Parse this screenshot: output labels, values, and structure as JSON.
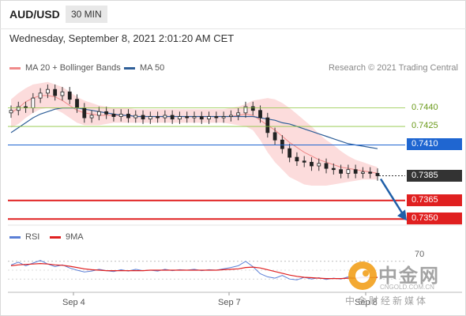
{
  "header": {
    "pair": "AUD/USD",
    "timeframe": "30 MIN",
    "datetime": "Wednesday, September 8, 2021 2:01:20 AM CET"
  },
  "legend": {
    "ma20_label": "MA 20 + Bollinger Bands",
    "ma50_label": "MA 50",
    "credit": "Research © 2021 Trading Central"
  },
  "colors": {
    "ma20": "#f08a8a",
    "bollinger_fill": "#fbd0d0",
    "ma50": "#2f5f98",
    "resistance": "#8dc63f",
    "pivot": "#1f66d1",
    "current": "#333333",
    "support": "#e02020",
    "arrow": "#1f5fa8",
    "rsi": "#5b7fd6",
    "rsi_ma": "#e02020"
  },
  "levels": [
    {
      "value": "0.7440",
      "kind": "resistance"
    },
    {
      "value": "0.7425",
      "kind": "resistance"
    },
    {
      "value": "0.7410",
      "kind": "pivot"
    },
    {
      "value": "0.7385",
      "kind": "current"
    },
    {
      "value": "0.7365",
      "kind": "support"
    },
    {
      "value": "0.7350",
      "kind": "support"
    }
  ],
  "rsi": {
    "rsi_label": "RSI",
    "ma_label": "9MA",
    "level_label": "70"
  },
  "x_ticks": [
    "Sep 4",
    "Sep 7",
    "Sep 8"
  ],
  "watermark": {
    "cn": "中金网",
    "en": "CNGOLD.COM.CN",
    "sub": "中金财经新媒体"
  },
  "chart_data": {
    "type": "candlestick",
    "timeframe": "30 MIN",
    "close": [
      0.7438,
      0.7441,
      0.744,
      0.7448,
      0.7452,
      0.7455,
      0.745,
      0.7453,
      0.7447,
      0.744,
      0.7432,
      0.7434,
      0.7437,
      0.7435,
      0.7433,
      0.7435,
      0.7432,
      0.7434,
      0.7431,
      0.7433,
      0.7432,
      0.7434,
      0.7431,
      0.7433,
      0.7432,
      0.7433,
      0.7431,
      0.7433,
      0.7432,
      0.7433,
      0.7434,
      0.7436,
      0.7441,
      0.7438,
      0.7432,
      0.742,
      0.7414,
      0.7407,
      0.74,
      0.7397,
      0.7396,
      0.7393,
      0.7395,
      0.7391,
      0.739,
      0.7387,
      0.739,
      0.7387,
      0.7388,
      0.7387,
      0.7385
    ],
    "ma20": [
      0.7436,
      0.744,
      0.7445,
      0.7448,
      0.745,
      0.745,
      0.7449,
      0.7446,
      0.7442,
      0.7438,
      0.7436,
      0.7435,
      0.7434,
      0.7434,
      0.7434,
      0.7434,
      0.7434,
      0.7433,
      0.7433,
      0.7433,
      0.7433,
      0.7433,
      0.7433,
      0.7433,
      0.7433,
      0.7433,
      0.7433,
      0.7433,
      0.7433,
      0.7433,
      0.7433,
      0.7434,
      0.7435,
      0.7434,
      0.743,
      0.7426,
      0.7422,
      0.7417,
      0.7412,
      0.7408,
      0.7404,
      0.7401,
      0.7398,
      0.7396,
      0.7394,
      0.7392,
      0.7391,
      0.739,
      0.7389,
      0.7388,
      0.7387
    ],
    "ma50": [
      0.742,
      0.7424,
      0.7428,
      0.7432,
      0.7435,
      0.7437,
      0.7439,
      0.744,
      0.744,
      0.744,
      0.7439,
      0.7438,
      0.7437,
      0.7436,
      0.7435,
      0.7434,
      0.7434,
      0.7433,
      0.7433,
      0.7433,
      0.7433,
      0.7433,
      0.7433,
      0.7433,
      0.7433,
      0.7433,
      0.7433,
      0.7433,
      0.7433,
      0.7433,
      0.7433,
      0.7433,
      0.7433,
      0.7433,
      0.7432,
      0.7431,
      0.743,
      0.7428,
      0.7427,
      0.7425,
      0.7423,
      0.7421,
      0.7419,
      0.7417,
      0.7415,
      0.7413,
      0.7411,
      0.741,
      0.7409,
      0.7408,
      0.7407
    ],
    "bb_upper": [
      0.7447,
      0.7452,
      0.7456,
      0.7459,
      0.746,
      0.7461,
      0.7459,
      0.7457,
      0.7453,
      0.7449,
      0.7446,
      0.7444,
      0.7442,
      0.7441,
      0.744,
      0.744,
      0.744,
      0.7439,
      0.7439,
      0.7439,
      0.7439,
      0.7439,
      0.7439,
      0.7439,
      0.7439,
      0.7439,
      0.7439,
      0.7439,
      0.7439,
      0.7439,
      0.744,
      0.7441,
      0.7443,
      0.7446,
      0.7447,
      0.7448,
      0.7447,
      0.7444,
      0.744,
      0.7435,
      0.743,
      0.7425,
      0.7419,
      0.7414,
      0.741,
      0.7405,
      0.7401,
      0.7398,
      0.7396,
      0.7394,
      0.7392
    ],
    "bb_lower": [
      0.7424,
      0.7427,
      0.7432,
      0.7436,
      0.7439,
      0.744,
      0.7439,
      0.7436,
      0.7432,
      0.7428,
      0.7426,
      0.7426,
      0.7426,
      0.7427,
      0.7428,
      0.7428,
      0.7428,
      0.7428,
      0.7428,
      0.7428,
      0.7428,
      0.7428,
      0.7428,
      0.7428,
      0.7428,
      0.7428,
      0.7428,
      0.7428,
      0.7428,
      0.7428,
      0.7427,
      0.7426,
      0.7425,
      0.7422,
      0.7414,
      0.7404,
      0.7396,
      0.739,
      0.7384,
      0.7381,
      0.7378,
      0.7377,
      0.7377,
      0.7377,
      0.7378,
      0.7379,
      0.738,
      0.7381,
      0.7382,
      0.7382,
      0.7382
    ],
    "rsi": [
      62,
      68,
      60,
      66,
      72,
      64,
      58,
      62,
      55,
      50,
      46,
      48,
      52,
      49,
      47,
      51,
      48,
      52,
      49,
      50,
      48,
      52,
      49,
      51,
      50,
      52,
      49,
      51,
      50,
      53,
      56,
      60,
      70,
      58,
      42,
      35,
      32,
      38,
      30,
      28,
      34,
      30,
      33,
      29,
      32,
      30,
      35,
      32,
      36,
      34,
      33
    ],
    "rsi_ma": [
      60,
      62,
      63,
      64,
      65,
      64,
      62,
      61,
      59,
      56,
      53,
      51,
      50,
      49,
      49,
      49,
      49,
      49,
      49,
      50,
      50,
      50,
      50,
      50,
      50,
      50,
      50,
      50,
      50,
      51,
      52,
      53,
      56,
      57,
      55,
      51,
      47,
      43,
      39,
      36,
      34,
      33,
      32,
      31,
      31,
      31,
      32,
      32,
      33,
      33,
      34
    ],
    "levels": [
      0.744,
      0.7425,
      0.741,
      0.7385,
      0.7365,
      0.735
    ],
    "ylim": [
      0.7345,
      0.7466
    ],
    "rsi_level": 70,
    "x_ticks": [
      "Sep 4",
      "Sep 7",
      "Sep 8"
    ]
  }
}
